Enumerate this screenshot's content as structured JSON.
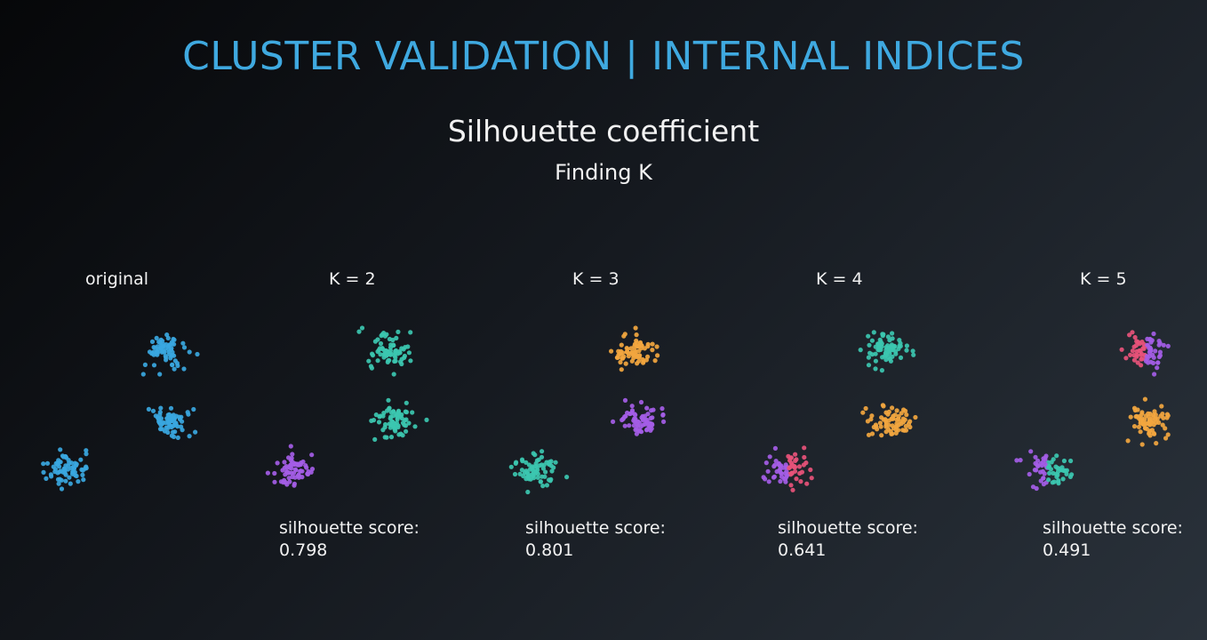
{
  "header": {
    "title": "CLUSTER VALIDATION | INTERNAL INDICES",
    "subtitle": "Silhouette coefficient",
    "subsubtitle": "Finding K"
  },
  "colors": {
    "title": "#3fa9e0",
    "blue": "#39a7e0",
    "teal": "#3cc7b0",
    "purple": "#a45de6",
    "orange": "#f2a63f",
    "pink": "#e8527a"
  },
  "panels": [
    {
      "label": "original",
      "score_label": "",
      "score_value": "",
      "blob_colors": [
        "blue",
        "blue",
        "blue"
      ]
    },
    {
      "label": "K = 2",
      "score_label": "silhouette score:",
      "score_value": "0.798",
      "blob_colors": [
        "teal",
        "teal",
        "purple"
      ]
    },
    {
      "label": "K = 3",
      "score_label": "silhouette score:",
      "score_value": "0.801",
      "blob_colors": [
        "orange",
        "purple",
        "teal"
      ]
    },
    {
      "label": "K = 4",
      "score_label": "silhouette score:",
      "score_value": "0.641",
      "blob_colors": [
        "teal",
        "orange",
        "purple|pink"
      ]
    },
    {
      "label": "K = 5",
      "score_label": "silhouette score:",
      "score_value": "0.491",
      "blob_colors": [
        "pink|purple",
        "orange",
        "purple|teal"
      ]
    }
  ]
}
